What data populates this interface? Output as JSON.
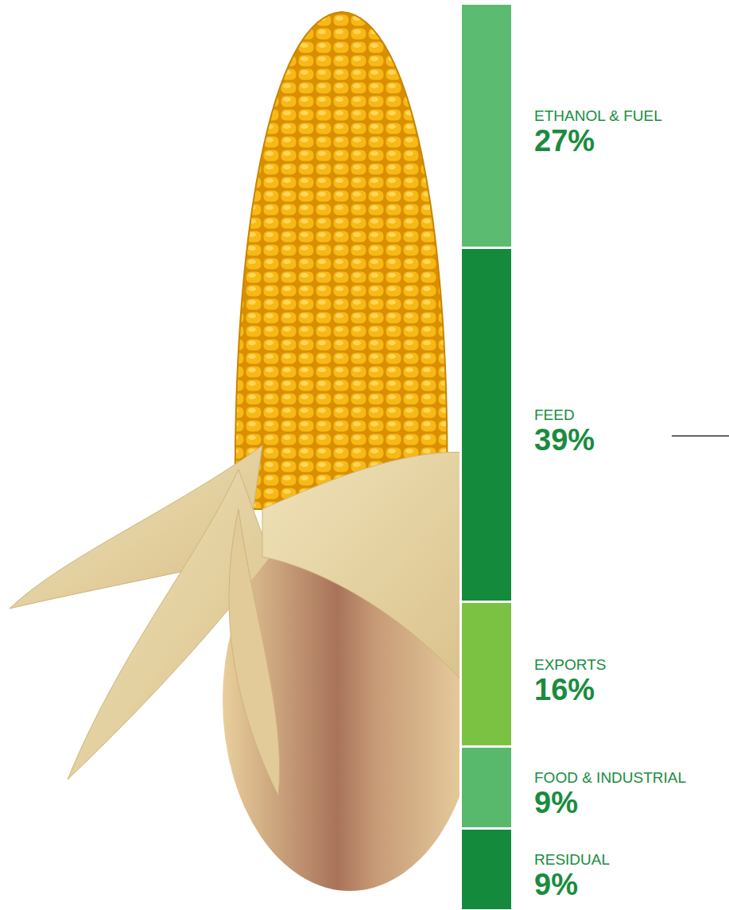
{
  "chart_data": {
    "type": "bar",
    "stacked": true,
    "categories": [
      null
    ],
    "series": [
      {
        "name": "ETHANOL & FUEL",
        "color": "#5bbb70",
        "values": [
          27
        ],
        "value_labels": [
          "27%"
        ]
      },
      {
        "name": "FEED",
        "color": "#138a3c",
        "values": [
          39
        ],
        "value_labels": [
          "39%"
        ]
      },
      {
        "name": "EXPORTS",
        "color": "#7cc242",
        "values": [
          16
        ],
        "value_labels": [
          "16%"
        ]
      },
      {
        "name": "FOOD & INDUSTRIAL",
        "color": "#58b86c",
        "values": [
          9
        ],
        "value_labels": [
          "9%"
        ]
      },
      {
        "name": "RESIDUAL",
        "color": "#138a3c",
        "values": [
          9
        ],
        "value_labels": [
          "9%"
        ]
      }
    ],
    "ylim": [
      0,
      100
    ],
    "tick_labels": false,
    "data_labels": true,
    "grid": false
  }
}
